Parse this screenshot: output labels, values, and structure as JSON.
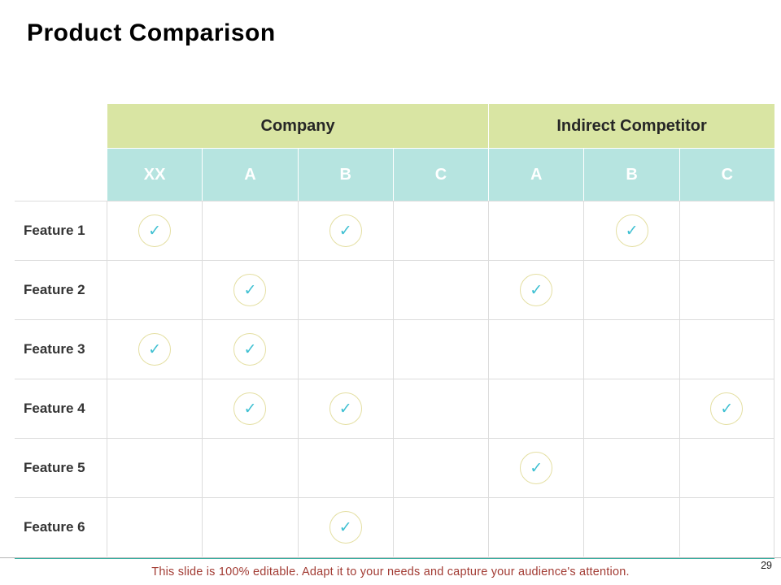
{
  "slide": {
    "title": "Product Comparison",
    "page_number": "29",
    "footer_note": "This slide is 100% editable. Adapt it to your needs and capture your audience's attention."
  },
  "table": {
    "group_headers": [
      {
        "label": "Company",
        "span": 4
      },
      {
        "label": "Indirect Competitor",
        "span": 3
      }
    ],
    "column_headers": [
      "XX",
      "A",
      "B",
      "C",
      "A",
      "B",
      "C"
    ],
    "rows": [
      {
        "label": "Feature 1",
        "checks": [
          true,
          false,
          true,
          false,
          false,
          true,
          false
        ]
      },
      {
        "label": "Feature 2",
        "checks": [
          false,
          true,
          false,
          false,
          true,
          false,
          false
        ]
      },
      {
        "label": "Feature 3",
        "checks": [
          true,
          true,
          false,
          false,
          false,
          false,
          false
        ]
      },
      {
        "label": "Feature 4",
        "checks": [
          false,
          true,
          true,
          false,
          false,
          false,
          true
        ]
      },
      {
        "label": "Feature 5",
        "checks": [
          false,
          false,
          false,
          false,
          true,
          false,
          false
        ]
      },
      {
        "label": "Feature 6",
        "checks": [
          false,
          false,
          true,
          false,
          false,
          false,
          false
        ]
      }
    ],
    "check_icon": {
      "name": "check-icon",
      "glyph": "✓"
    }
  },
  "colors": {
    "group_header_bg": "#d9e5a3",
    "column_header_bg": "#b6e4e0",
    "check_mark": "#3fc0d2",
    "check_ring": "#e4dfa2",
    "accent_line": "#2fae9f",
    "footer_text": "#a23b33",
    "grid_line": "#dcdcdc"
  }
}
